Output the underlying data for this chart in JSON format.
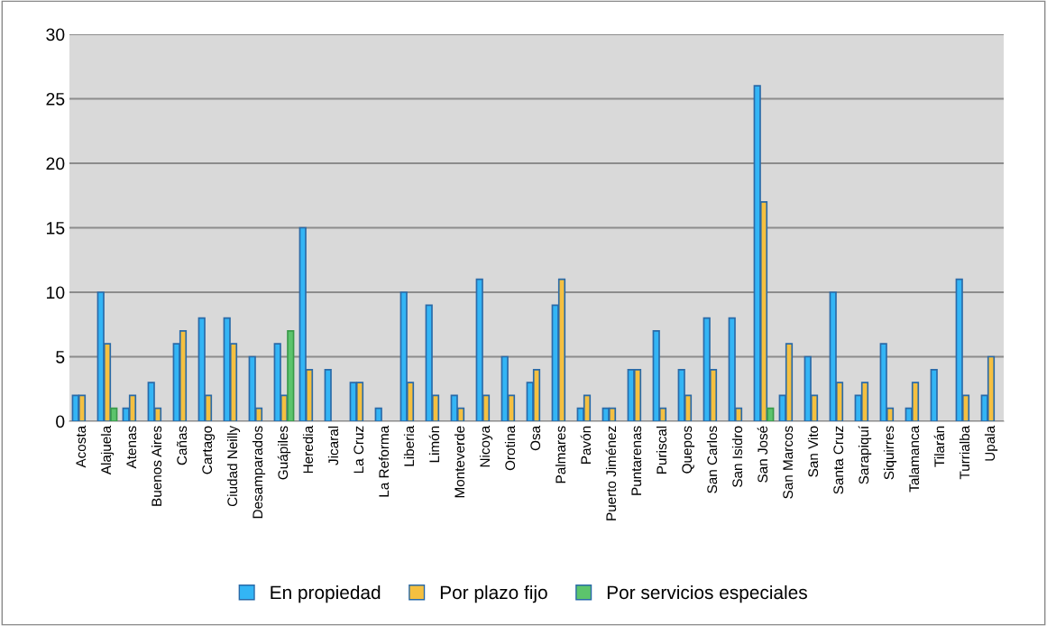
{
  "chart_data": {
    "type": "bar",
    "categories": [
      "Acosta",
      "Alajuela",
      "Atenas",
      "Buenos Aires",
      "Cañas",
      "Cartago",
      "Ciudad Neilly",
      "Desamparados",
      "Guápiles",
      "Heredia",
      "Jicaral",
      "La Cruz",
      "La Reforma",
      "Liberia",
      "Limón",
      "Monteverde",
      "Nicoya",
      "Orotina",
      "Osa",
      "Palmares",
      "Pavón",
      "Puerto Jiménez",
      "Puntarenas",
      "Puriscal",
      "Quepos",
      "San Carlos",
      "San Isidro",
      "San José",
      "San Marcos",
      "San Vito",
      "Santa Cruz",
      "Sarapiquí",
      "Siquirres",
      "Talamanca",
      "Tilarán",
      "Turrialba",
      "Upala"
    ],
    "series": [
      {
        "name": "En propiedad",
        "color": "#33b5f5",
        "values": [
          2,
          10,
          1,
          3,
          6,
          8,
          8,
          5,
          6,
          15,
          4,
          3,
          1,
          10,
          9,
          2,
          11,
          5,
          3,
          9,
          1,
          1,
          4,
          7,
          4,
          8,
          8,
          26,
          2,
          5,
          10,
          2,
          6,
          1,
          4,
          11,
          2
        ]
      },
      {
        "name": "Por plazo fijo",
        "color": "#f5c040",
        "values": [
          2,
          6,
          2,
          1,
          7,
          2,
          6,
          1,
          2,
          4,
          null,
          3,
          null,
          3,
          2,
          1,
          2,
          2,
          4,
          11,
          2,
          1,
          4,
          1,
          2,
          4,
          1,
          17,
          6,
          2,
          3,
          3,
          1,
          3,
          null,
          2,
          5
        ]
      },
      {
        "name": "Por servicios especiales",
        "color": "#5cc46c",
        "values": [
          null,
          1,
          null,
          null,
          null,
          null,
          null,
          null,
          7,
          null,
          null,
          null,
          null,
          null,
          null,
          null,
          null,
          null,
          null,
          null,
          null,
          null,
          null,
          null,
          null,
          null,
          null,
          1,
          null,
          null,
          null,
          null,
          null,
          null,
          null,
          null,
          null
        ]
      }
    ],
    "ylim": [
      0,
      30
    ],
    "yticks": [
      0,
      5,
      10,
      15,
      20,
      25,
      30
    ],
    "grid": "y",
    "legend": "bottom"
  }
}
